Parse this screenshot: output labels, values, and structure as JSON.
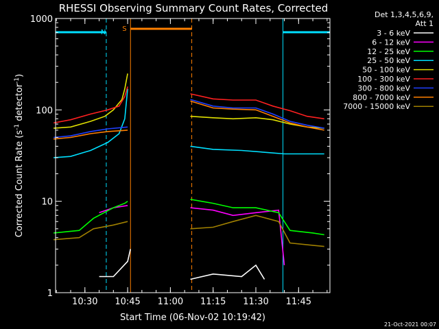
{
  "chart_data": {
    "type": "line",
    "title": "RHESSI Observing Summary Count Rates, Corrected",
    "xlabel": "Start Time (06-Nov-02 10:19:42)",
    "ylabel_main": "Corrected Count Rate (s",
    "ylabel_sup1": "-1",
    "ylabel_mid": " detector",
    "ylabel_sup2": "-1",
    "ylabel_end": ")",
    "yscale": "log",
    "ylim": [
      1,
      1000
    ],
    "xlim": [
      "10:19:42",
      "11:56:00"
    ],
    "x_ticks": [
      "10:30",
      "10:45",
      "11:00",
      "11:15",
      "11:30",
      "11:45"
    ],
    "y_ticks": [
      "1",
      "10",
      "100",
      "1000"
    ],
    "legend_header": [
      "Det 1,3,4,5,6,9,",
      "Att 1"
    ],
    "legend_position": "right",
    "timestamp": "21-Oct-2021 00:07",
    "flag_labels": {
      "night": "N",
      "saa": "S"
    },
    "flags": {
      "night": [
        [
          "10:19:42",
          "10:37:30"
        ],
        [
          "11:39:30",
          "11:56:00"
        ]
      ],
      "saa": [
        [
          "10:46:00",
          "11:07:30"
        ]
      ],
      "night_color": "#00e0ff",
      "saa_color": "#ff8000"
    },
    "series": [
      {
        "name": "3 - 6 keV",
        "color": "#ffffff",
        "segments": [
          {
            "x": [
              "10:35",
              "10:40",
              "10:45",
              "10:46"
            ],
            "y": [
              1.5,
              1.5,
              2.2,
              3
            ]
          },
          {
            "x": [
              "11:07",
              "11:15",
              "11:25",
              "11:30",
              "11:33"
            ],
            "y": [
              1.4,
              1.6,
              1.5,
              2.0,
              1.4
            ]
          }
        ]
      },
      {
        "name": "6 - 12 keV",
        "color": "#ff00ff",
        "segments": [
          {
            "x": [
              "10:35",
              "10:40",
              "10:45"
            ],
            "y": [
              7.5,
              8.5,
              9.0
            ]
          },
          {
            "x": [
              "11:07",
              "11:15",
              "11:22",
              "11:30",
              "11:38",
              "11:40"
            ],
            "y": [
              8.5,
              8.0,
              7.0,
              7.5,
              8.0,
              2.0
            ]
          }
        ]
      },
      {
        "name": "12 - 25 keV",
        "color": "#00ff00",
        "segments": [
          {
            "x": [
              "10:19",
              "10:28",
              "10:33",
              "10:40",
              "10:44",
              "10:45"
            ],
            "y": [
              4.5,
              4.8,
              6.5,
              8.5,
              9.5,
              10
            ]
          },
          {
            "x": [
              "11:07",
              "11:15",
              "11:22",
              "11:30",
              "11:38",
              "11:42",
              "11:50",
              "11:54"
            ],
            "y": [
              10.5,
              9.5,
              8.5,
              8.5,
              7.5,
              4.8,
              4.5,
              4.3
            ]
          }
        ]
      },
      {
        "name": "25 - 50 keV",
        "color": "#00e0ff",
        "segments": [
          {
            "x": [
              "10:19",
              "10:25",
              "10:32",
              "10:38",
              "10:42",
              "10:44",
              "10:45"
            ],
            "y": [
              30,
              31,
              36,
              44,
              55,
              80,
              170
            ]
          },
          {
            "x": [
              "11:07",
              "11:15",
              "11:25",
              "11:35",
              "11:40",
              "11:47",
              "11:54"
            ],
            "y": [
              40,
              37,
              36,
              34,
              33,
              33,
              33
            ]
          }
        ]
      },
      {
        "name": "50 - 100 keV",
        "color": "#e0e000",
        "segments": [
          {
            "x": [
              "10:19",
              "10:25",
              "10:32",
              "10:37",
              "10:40",
              "10:43",
              "10:44",
              "10:45"
            ],
            "y": [
              63,
              65,
              75,
              85,
              100,
              130,
              170,
              250
            ]
          },
          {
            "x": [
              "11:07",
              "11:15",
              "11:22",
              "11:30",
              "11:36",
              "11:42",
              "11:48",
              "11:54"
            ],
            "y": [
              85,
              82,
              80,
              82,
              78,
              70,
              65,
              63
            ]
          }
        ]
      },
      {
        "name": "100 - 300 keV",
        "color": "#ff2020",
        "segments": [
          {
            "x": [
              "10:19",
              "10:25",
              "10:32",
              "10:38",
              "10:42",
              "10:44",
              "10:45"
            ],
            "y": [
              72,
              78,
              90,
              100,
              110,
              140,
              180
            ]
          },
          {
            "x": [
              "11:07",
              "11:15",
              "11:22",
              "11:30",
              "11:36",
              "11:42",
              "11:48",
              "11:54"
            ],
            "y": [
              150,
              132,
              128,
              128,
              110,
              98,
              85,
              80
            ]
          }
        ]
      },
      {
        "name": "300 - 800 keV",
        "color": "#2040ff",
        "segments": [
          {
            "x": [
              "10:19",
              "10:25",
              "10:32",
              "10:38",
              "10:45"
            ],
            "y": [
              50,
              52,
              58,
              62,
              65
            ]
          },
          {
            "x": [
              "11:07",
              "11:15",
              "11:22",
              "11:30",
              "11:36",
              "11:42",
              "11:48",
              "11:54"
            ],
            "y": [
              130,
              110,
              105,
              105,
              90,
              75,
              68,
              63
            ]
          }
        ]
      },
      {
        "name": "800 - 7000 keV",
        "color": "#ff8000",
        "segments": [
          {
            "x": [
              "10:19",
              "10:25",
              "10:32",
              "10:38",
              "10:45"
            ],
            "y": [
              48,
              50,
              55,
              58,
              60
            ]
          },
          {
            "x": [
              "11:07",
              "11:15",
              "11:22",
              "11:30",
              "11:36",
              "11:42",
              "11:48",
              "11:54"
            ],
            "y": [
              125,
              105,
              102,
              100,
              85,
              72,
              65,
              60
            ]
          }
        ]
      },
      {
        "name": "7000 - 15000 keV",
        "color": "#a08000",
        "segments": [
          {
            "x": [
              "10:19",
              "10:28",
              "10:33",
              "10:40",
              "10:45"
            ],
            "y": [
              3.8,
              4.0,
              5.0,
              5.5,
              6.0
            ]
          },
          {
            "x": [
              "11:07",
              "11:15",
              "11:22",
              "11:30",
              "11:38",
              "11:42",
              "11:50",
              "11:54"
            ],
            "y": [
              5.0,
              5.2,
              6.0,
              7.0,
              6.0,
              3.5,
              3.3,
              3.2
            ]
          }
        ]
      }
    ]
  }
}
